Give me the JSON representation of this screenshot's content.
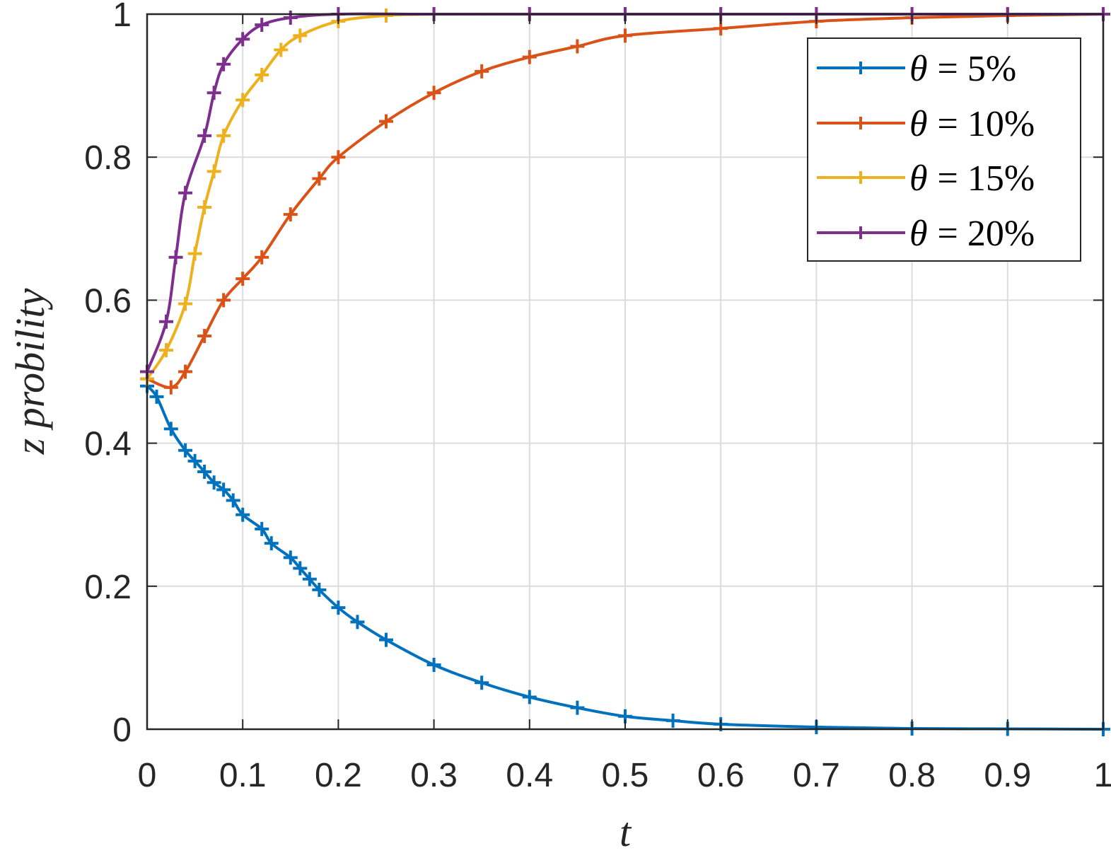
{
  "chart_data": {
    "type": "line",
    "title": "",
    "xlabel": "t",
    "ylabel": "z probility",
    "xlim": [
      0,
      1
    ],
    "ylim": [
      0,
      1
    ],
    "grid": true,
    "legend_position": "northeast",
    "x_ticks": [
      "0",
      "0.1",
      "0.2",
      "0.3",
      "0.4",
      "0.5",
      "0.6",
      "0.7",
      "0.8",
      "0.9",
      "1"
    ],
    "y_ticks": [
      "0",
      "0.2",
      "0.4",
      "0.6",
      "0.8",
      "1"
    ],
    "marker": "+",
    "series": [
      {
        "name": "θ = 5%",
        "color": "#0072BD",
        "x": [
          0,
          0.01,
          0.025,
          0.04,
          0.05,
          0.06,
          0.07,
          0.08,
          0.09,
          0.1,
          0.12,
          0.13,
          0.15,
          0.16,
          0.17,
          0.18,
          0.2,
          0.22,
          0.25,
          0.3,
          0.35,
          0.4,
          0.45,
          0.5,
          0.55,
          0.6,
          0.7,
          0.8,
          0.9,
          1.0
        ],
        "values": [
          0.48,
          0.465,
          0.42,
          0.39,
          0.375,
          0.36,
          0.345,
          0.335,
          0.32,
          0.3,
          0.28,
          0.26,
          0.24,
          0.225,
          0.21,
          0.195,
          0.17,
          0.15,
          0.125,
          0.09,
          0.065,
          0.045,
          0.03,
          0.018,
          0.012,
          0.007,
          0.003,
          0.001,
          0.0005,
          0.0
        ]
      },
      {
        "name": "θ = 10%",
        "color": "#D95319",
        "x": [
          0,
          0.025,
          0.04,
          0.06,
          0.08,
          0.1,
          0.12,
          0.15,
          0.18,
          0.2,
          0.25,
          0.3,
          0.35,
          0.4,
          0.45,
          0.5,
          0.6,
          0.7,
          0.8,
          0.9,
          1.0
        ],
        "values": [
          0.49,
          0.478,
          0.5,
          0.55,
          0.6,
          0.63,
          0.66,
          0.72,
          0.77,
          0.8,
          0.85,
          0.89,
          0.92,
          0.94,
          0.955,
          0.97,
          0.98,
          0.99,
          0.995,
          0.998,
          1.0
        ]
      },
      {
        "name": "θ = 15%",
        "color": "#EDB120",
        "x": [
          0,
          0.02,
          0.04,
          0.05,
          0.06,
          0.07,
          0.08,
          0.1,
          0.12,
          0.14,
          0.16,
          0.2,
          0.25,
          0.3,
          0.4,
          0.5,
          0.6,
          0.7,
          0.8,
          0.9,
          1.0
        ],
        "values": [
          0.49,
          0.53,
          0.595,
          0.665,
          0.73,
          0.78,
          0.83,
          0.88,
          0.915,
          0.95,
          0.97,
          0.99,
          0.998,
          1.0,
          1.0,
          1.0,
          1.0,
          1.0,
          1.0,
          1.0,
          1.0
        ]
      },
      {
        "name": "θ = 20%",
        "color": "#7E2F8E",
        "x": [
          0,
          0.02,
          0.03,
          0.04,
          0.06,
          0.07,
          0.08,
          0.1,
          0.12,
          0.15,
          0.2,
          0.3,
          0.4,
          0.5,
          0.6,
          0.7,
          0.8,
          0.9,
          1.0
        ],
        "values": [
          0.5,
          0.57,
          0.66,
          0.75,
          0.83,
          0.89,
          0.93,
          0.965,
          0.985,
          0.995,
          1.0,
          1.0,
          1.0,
          1.0,
          1.0,
          1.0,
          1.0,
          1.0,
          1.0
        ]
      }
    ]
  },
  "legend": {
    "items": [
      {
        "theta": "θ",
        "eq": "= 5%"
      },
      {
        "theta": "θ",
        "eq": "= 10%"
      },
      {
        "theta": "θ",
        "eq": "= 15%"
      },
      {
        "theta": "θ",
        "eq": "= 20%"
      }
    ]
  },
  "axes": {
    "xlabel": "t",
    "ylabel": "z probility"
  }
}
